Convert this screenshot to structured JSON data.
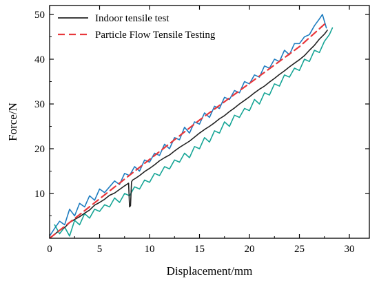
{
  "chart_data": {
    "type": "line",
    "title": "",
    "xlabel": "Displacement/mm",
    "ylabel": "Force/N",
    "xlim": [
      0,
      32
    ],
    "ylim": [
      0,
      52
    ],
    "xticks": [
      0,
      5,
      10,
      15,
      20,
      25,
      30
    ],
    "yticks": [
      10,
      20,
      30,
      40,
      50
    ],
    "grid": false,
    "legend_position": "top-left",
    "series": [
      {
        "name": "Indoor tensile test",
        "color": "#222222",
        "style": "solid",
        "x": [
          0.3,
          1.0,
          1.5,
          2.0,
          2.5,
          3.0,
          3.5,
          4.0,
          4.5,
          5.0,
          5.5,
          6.0,
          6.5,
          7.0,
          7.5,
          7.9,
          8.0,
          8.1,
          8.2,
          8.3,
          8.6,
          9.0,
          9.5,
          10.0,
          10.5,
          11.0,
          11.5,
          12.0,
          12.5,
          13.0,
          13.5,
          14.0,
          14.5,
          15.0,
          15.5,
          16.0,
          16.5,
          17.0,
          17.5,
          18.0,
          18.5,
          19.0,
          19.5,
          20.0,
          20.5,
          21.0,
          21.5,
          22.0,
          22.5,
          23.0,
          23.5,
          24.0,
          24.5,
          25.0,
          25.5,
          26.0,
          26.5,
          27.0,
          27.5,
          27.8
        ],
        "y": [
          0.5,
          1.8,
          2.4,
          3.5,
          4.2,
          4.8,
          5.6,
          6.3,
          7.4,
          8.0,
          8.7,
          9.6,
          10.1,
          10.9,
          11.7,
          12.3,
          7.0,
          7.3,
          12.6,
          13.0,
          13.4,
          14.0,
          14.9,
          15.6,
          16.4,
          17.3,
          18.0,
          18.6,
          19.5,
          20.3,
          21.0,
          21.7,
          22.6,
          23.5,
          24.3,
          25.0,
          25.8,
          26.7,
          27.4,
          28.3,
          29.1,
          30.0,
          30.8,
          31.6,
          32.5,
          33.3,
          34.0,
          34.9,
          35.7,
          36.6,
          37.4,
          38.3,
          39.1,
          39.9,
          40.8,
          42.0,
          43.1,
          44.5,
          45.6,
          46.5
        ]
      },
      {
        "name": "Particle Flow Tensile Testing",
        "color": "#e8373b",
        "style": "dashed",
        "x": [
          0,
          5,
          10,
          15,
          20,
          25,
          27.7
        ],
        "y": [
          0.0,
          8.8,
          17.6,
          26.4,
          34.6,
          42.8,
          48.2
        ]
      },
      {
        "name": "",
        "color": "#1f7dc0",
        "style": "solid",
        "x": [
          0.0,
          0.5,
          1.0,
          1.5,
          2.0,
          2.5,
          3.0,
          3.5,
          4.0,
          4.5,
          5.0,
          5.5,
          6.0,
          6.5,
          7.0,
          7.5,
          8.0,
          8.5,
          9.0,
          9.5,
          10.0,
          10.5,
          11.0,
          11.5,
          12.0,
          12.5,
          13.0,
          13.5,
          14.0,
          14.5,
          15.0,
          15.5,
          16.0,
          16.5,
          17.0,
          17.5,
          18.0,
          18.5,
          19.0,
          19.5,
          20.0,
          20.5,
          21.0,
          21.5,
          22.0,
          22.5,
          23.0,
          23.5,
          24.0,
          24.5,
          25.0,
          25.5,
          26.0,
          26.5,
          27.0,
          27.3,
          27.7
        ],
        "y": [
          0.5,
          2.2,
          3.8,
          3.0,
          6.5,
          5.0,
          7.8,
          7.0,
          9.5,
          8.5,
          11.0,
          10.2,
          11.5,
          12.8,
          12.0,
          14.5,
          14.0,
          16.0,
          15.0,
          17.5,
          17.0,
          19.0,
          18.5,
          21.0,
          20.0,
          22.5,
          22.0,
          24.8,
          23.5,
          26.0,
          25.5,
          28.0,
          27.0,
          29.5,
          29.0,
          31.5,
          31.0,
          33.0,
          32.5,
          35.0,
          34.5,
          36.5,
          36.0,
          38.5,
          38.0,
          40.0,
          39.5,
          42.0,
          41.0,
          43.5,
          43.5,
          45.0,
          45.5,
          47.5,
          49.0,
          50.0,
          47.0
        ]
      },
      {
        "name": "",
        "color": "#16a596",
        "style": "solid",
        "x": [
          0.5,
          1.0,
          1.5,
          2.0,
          2.5,
          3.0,
          3.5,
          4.0,
          4.5,
          5.0,
          5.5,
          6.0,
          6.5,
          7.0,
          7.5,
          8.0,
          8.5,
          9.0,
          9.5,
          10.0,
          10.5,
          11.0,
          11.5,
          12.0,
          12.5,
          13.0,
          13.5,
          14.0,
          14.5,
          15.0,
          15.5,
          16.0,
          16.5,
          17.0,
          17.5,
          18.0,
          18.5,
          19.0,
          19.5,
          20.0,
          20.5,
          21.0,
          21.5,
          22.0,
          22.5,
          23.0,
          23.5,
          24.0,
          24.5,
          25.0,
          25.5,
          26.0,
          26.5,
          27.0,
          27.5,
          28.0,
          28.3
        ],
        "y": [
          3.0,
          1.0,
          2.5,
          0.5,
          4.0,
          3.0,
          5.5,
          4.5,
          6.5,
          6.0,
          7.5,
          7.0,
          9.0,
          8.0,
          10.0,
          9.5,
          11.5,
          11.0,
          13.0,
          12.5,
          14.5,
          14.0,
          16.0,
          15.5,
          17.5,
          17.0,
          19.0,
          18.0,
          20.5,
          20.0,
          22.5,
          21.5,
          24.0,
          23.5,
          26.0,
          25.0,
          27.5,
          27.0,
          29.0,
          28.5,
          31.0,
          30.0,
          32.5,
          32.0,
          34.5,
          34.0,
          36.5,
          36.0,
          38.0,
          37.5,
          40.0,
          39.5,
          42.0,
          41.5,
          44.0,
          45.5,
          47.0
        ]
      }
    ]
  }
}
